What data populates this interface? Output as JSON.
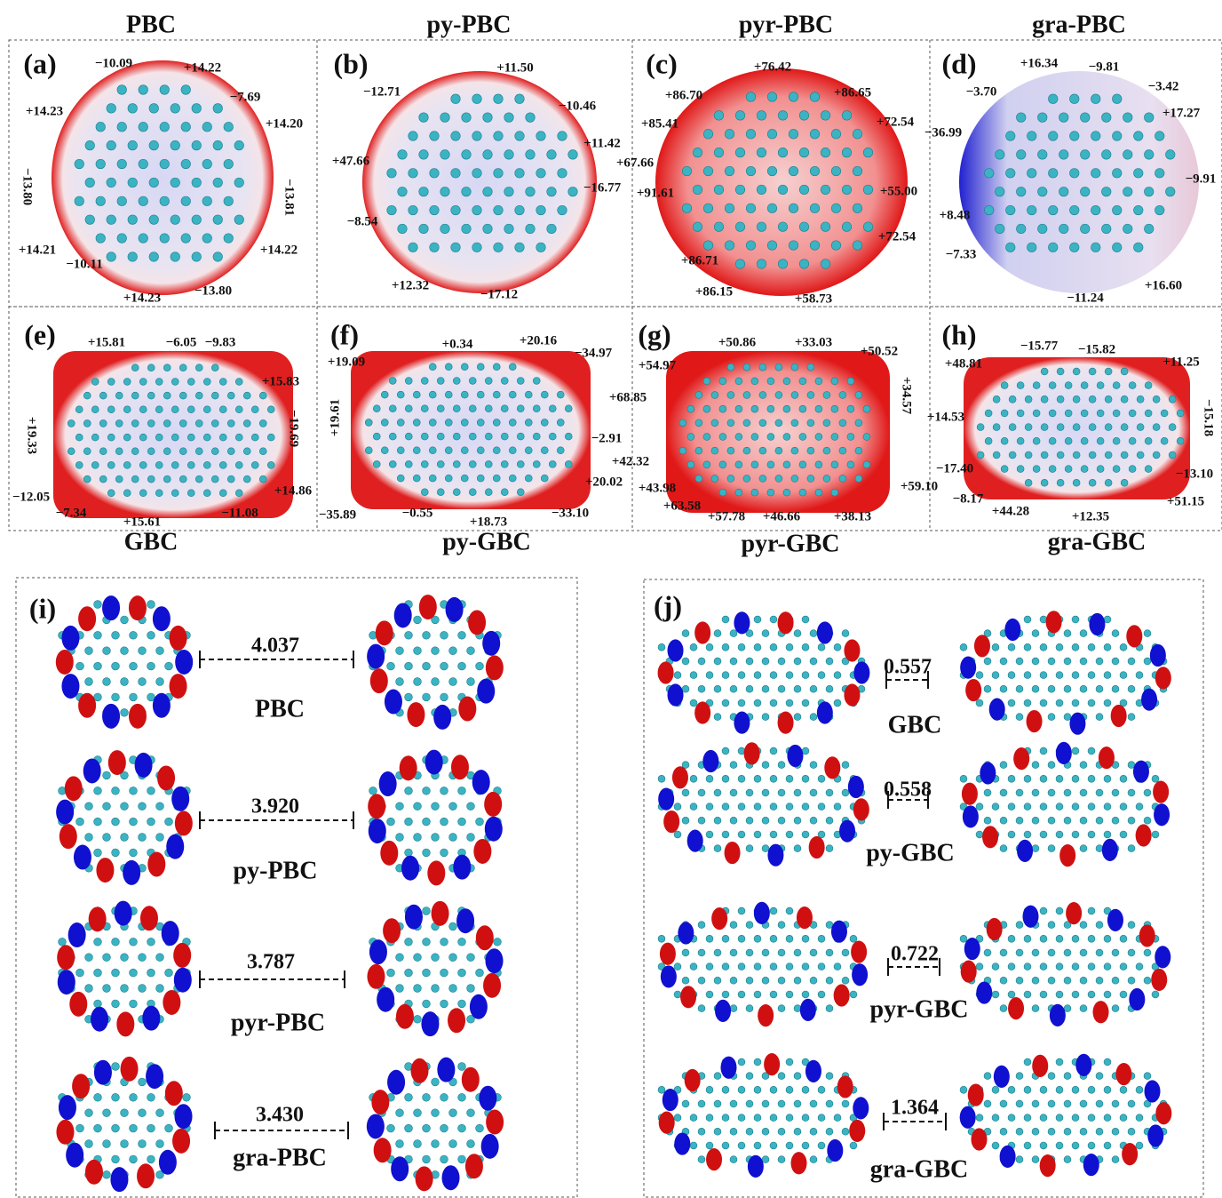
{
  "panels": [
    {
      "letter": "(a)",
      "title": "PBC",
      "labels": [
        "−10.09",
        "+14.22",
        "−7.69",
        "+14.23",
        "+14.20",
        "−13.80",
        "−13.81",
        "+14.21",
        "+14.22",
        "−10.11",
        "−13.80",
        "+14.23"
      ]
    },
    {
      "letter": "(b)",
      "title": "py-PBC",
      "labels": [
        "+11.50",
        "−12.71",
        "−10.46",
        "+11.42",
        "+47.66",
        "−16.77",
        "−8.54",
        "−17.12",
        "+12.32"
      ]
    },
    {
      "letter": "(c)",
      "title": "pyr-PBC",
      "labels": [
        "+76.42",
        "+86.70",
        "+86.65",
        "+85.41",
        "+72.54",
        "+67.66",
        "+91.61",
        "+55.00",
        "+72.54",
        "+86.71",
        "+86.15",
        "+58.73"
      ]
    },
    {
      "letter": "(d)",
      "title": "gra-PBC",
      "labels": [
        "+16.34",
        "−9.81",
        "−3.70",
        "−3.42",
        "+17.27",
        "−36.99",
        "−9.91",
        "+8.48",
        "−7.33",
        "+16.60",
        "−11.24"
      ]
    },
    {
      "letter": "(e)",
      "title": "GBC",
      "labels": [
        "+15.81",
        "−6.05",
        "−9.83",
        "+15.83",
        "+19.33",
        "−19.69",
        "−12.05",
        "+14.86",
        "−7.34",
        "+15.61",
        "−11.08"
      ]
    },
    {
      "letter": "(f)",
      "title": "py-GBC",
      "labels": [
        "+0.34",
        "+20.16",
        "−34.97",
        "+19.09",
        "+19.61",
        "+68.85",
        "−2.91",
        "−35.89",
        "−0.55",
        "+18.73",
        "−33.10",
        "+20.02"
      ]
    },
    {
      "letter": "(g)",
      "title": "pyr-GBC",
      "labels": [
        "+50.86",
        "+33.03",
        "+50.52",
        "+54.97",
        "+34.57",
        "+42.32",
        "+43.98",
        "+63.58",
        "+57.78",
        "+46.66",
        "+38.13",
        "+59.10"
      ]
    },
    {
      "letter": "(h)",
      "title": "gra-GBC",
      "labels": [
        "−15.77",
        "−15.82",
        "+48.81",
        "+11.25",
        "−15.18",
        "+14.53",
        "−17.40",
        "−13.10",
        "−8.17",
        "+44.28",
        "+12.35",
        "+51.15"
      ]
    }
  ],
  "orbitals": [
    {
      "letter": "(i)",
      "rows": [
        {
          "gap": "4.037",
          "name": "PBC"
        },
        {
          "gap": "3.920",
          "name": "py-PBC"
        },
        {
          "gap": "3.787",
          "name": "pyr-PBC"
        },
        {
          "gap": "3.430",
          "name": "gra-PBC"
        }
      ]
    },
    {
      "letter": "(j)",
      "rows": [
        {
          "gap": "0.557",
          "name": "GBC"
        },
        {
          "gap": "0.558",
          "name": "py-GBC"
        },
        {
          "gap": "0.722",
          "name": "pyr-GBC"
        },
        {
          "gap": "1.364",
          "name": "gra-GBC"
        }
      ]
    }
  ]
}
